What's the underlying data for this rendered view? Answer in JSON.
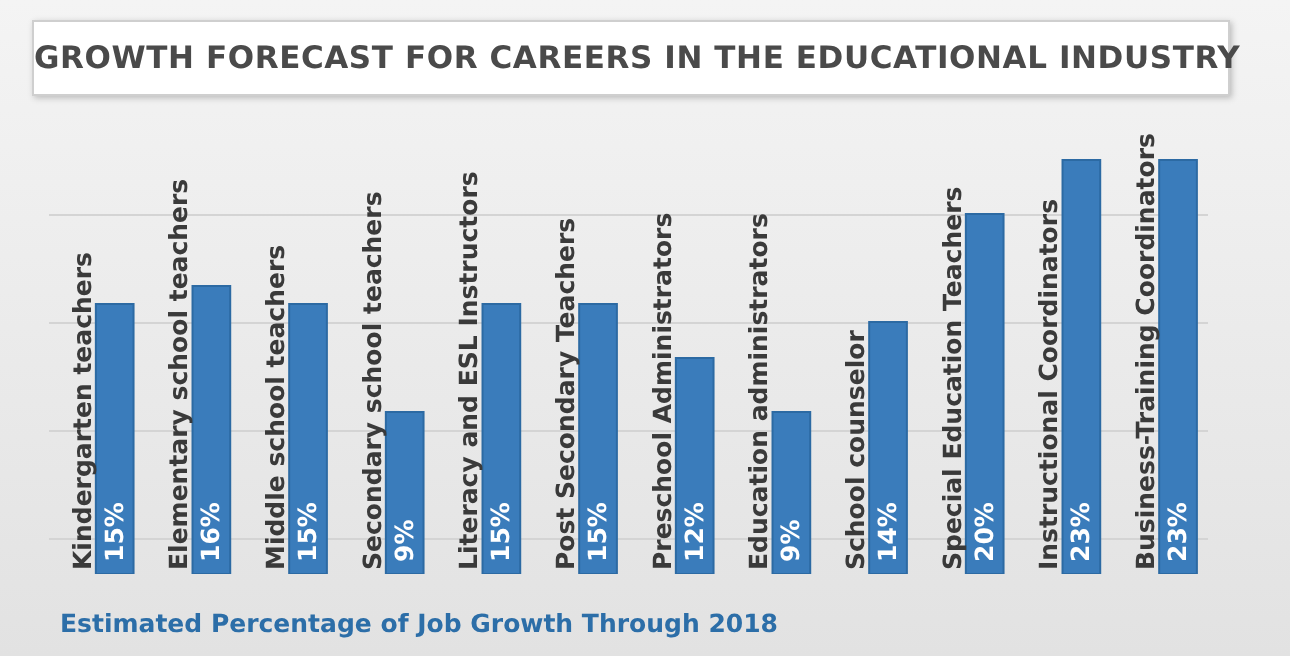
{
  "chart_data": {
    "type": "bar",
    "title": "GROWTH FORECAST FOR CAREERS IN THE EDUCATIONAL INDUSTRY",
    "categories": [
      "Kindergarten teachers",
      "Elementary school teachers",
      "Middle school teachers",
      "Secondary school teachers",
      "Literacy and ESL Instructors",
      "Post Secondary Teachers",
      "Preschool Administrators",
      "Education administrators",
      "School counselor",
      "Special Education Teachers",
      "Instructional Coordinators",
      "Business-Training Coordinators"
    ],
    "values": [
      15,
      16,
      15,
      9,
      15,
      15,
      12,
      9,
      14,
      20,
      23,
      23
    ],
    "value_labels": [
      "15%",
      "16%",
      "15%",
      "9%",
      "15%",
      "15%",
      "12%",
      "9%",
      "14%",
      "20%",
      "23%",
      "23%"
    ],
    "color": "#3a7cbb",
    "yticks": [
      {
        "value": 2,
        "label": null
      },
      {
        "value": 8,
        "label": null
      },
      {
        "value": 14,
        "label": null
      },
      {
        "value": 20,
        "label": null
      }
    ],
    "grid": "y",
    "tick_labels": "x",
    "annotations": [
      "Estimated Percentage of Job Growth Through 2018"
    ]
  }
}
